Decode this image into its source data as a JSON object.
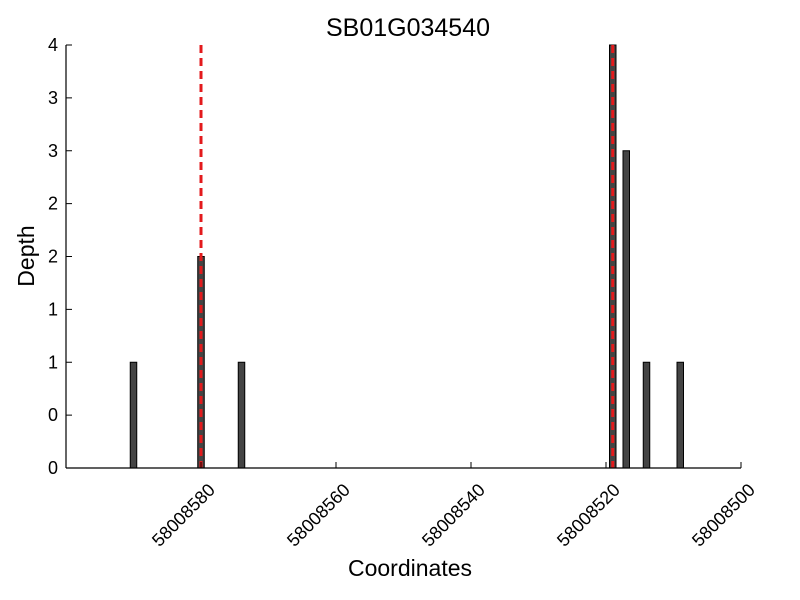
{
  "chart_data": {
    "type": "bar",
    "title": "SB01G034540",
    "xlabel": "Coordinates",
    "ylabel": "Depth",
    "x_reversed": true,
    "xlim": [
      58008600,
      58008500
    ],
    "ylim": [
      0,
      4
    ],
    "x_ticks": [
      58008580,
      58008560,
      58008540,
      58008520,
      58008500
    ],
    "y_ticks": [
      0,
      0.5,
      1,
      1.5,
      2,
      2.5,
      3,
      3.5,
      4
    ],
    "y_tick_labels": [
      "0",
      "0",
      "1",
      "1",
      "2",
      "2",
      "3",
      "3",
      "4"
    ],
    "grid": false,
    "legend": "none",
    "bar_color": "#444444",
    "bar_edge_color": "#000000",
    "marker_color": "#e31a1c",
    "series": [
      {
        "x": [
          58008590,
          58008580,
          58008574,
          58008519,
          58008517,
          58008514,
          58008509
        ],
        "values": [
          1,
          2,
          1,
          4,
          3,
          1,
          1
        ]
      }
    ],
    "markers": [
      {
        "x": 58008580,
        "y_top": 4
      },
      {
        "x": 58008519,
        "y_top": 4
      }
    ]
  }
}
